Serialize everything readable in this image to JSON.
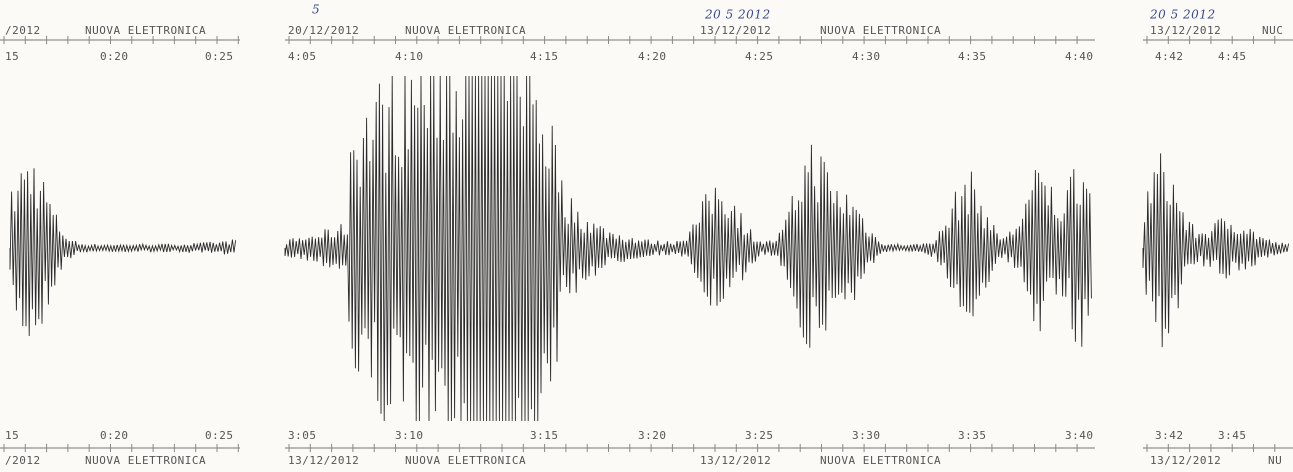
{
  "panels": [
    {
      "top_header": [
        "/2012",
        "NUOVA ELETTRONICA"
      ],
      "top_times": [
        "15",
        "0:20",
        "0:25"
      ],
      "bottom_times": [
        "15",
        "0:20",
        "0:25"
      ],
      "bottom_header": [
        "/2012",
        "NUOVA ELETTRONICA"
      ]
    },
    {
      "top_header": [
        "20/12/2012",
        "NUOVA ELETTRONICA",
        "13/12/2012",
        "NUOVA ELETTRONICA"
      ],
      "handwritten": [
        "5",
        "20 5 2012"
      ],
      "top_times": [
        "4:05",
        "4:10",
        "4:15",
        "4:20",
        "4:25",
        "4:30",
        "4:35",
        "4:40"
      ],
      "bottom_times": [
        "3:05",
        "3:10",
        "3:15",
        "3:20",
        "3:25",
        "3:30",
        "3:35",
        "3:40"
      ],
      "bottom_header": [
        "13/12/2012",
        "NUOVA ELETTRONICA",
        "13/12/2012",
        "NUOVA ELETTRONICA"
      ]
    },
    {
      "top_header": [
        "13/12/2012",
        "NUC"
      ],
      "handwritten": [
        "20 5 2012"
      ],
      "top_times": [
        "4:42",
        "4:45"
      ],
      "bottom_times": [
        "3:42",
        "3:45"
      ],
      "bottom_header": [
        "13/12/2012",
        "NU"
      ]
    }
  ]
}
